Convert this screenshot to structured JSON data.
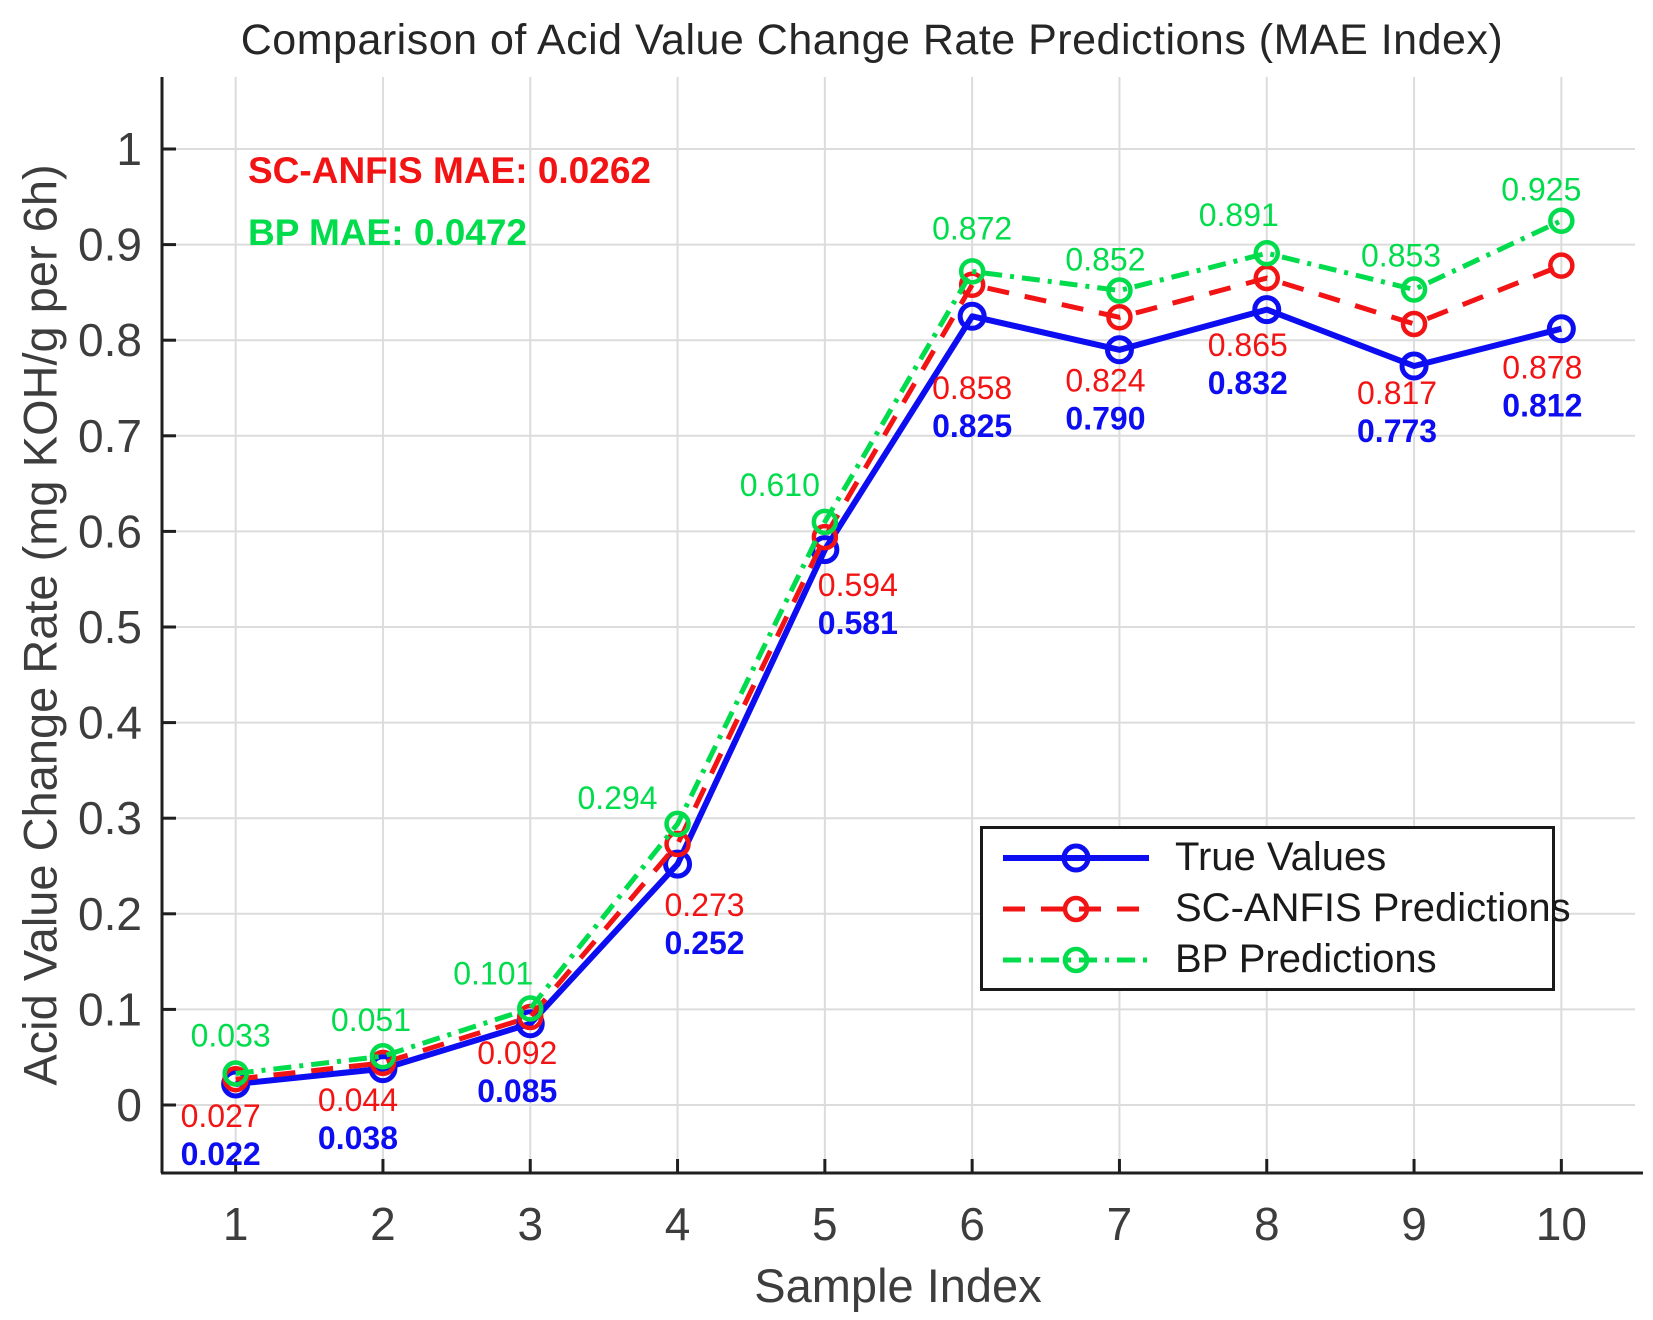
{
  "title": "Comparison of Acid Value Change Rate Predictions (MAE Index)",
  "axes": {
    "x_label": "Sample Index",
    "y_label": "Acid Value Change Rate (mg KOH/g per 6h)",
    "x_tick_labels": [
      "1",
      "2",
      "3",
      "4",
      "5",
      "6",
      "7",
      "8",
      "9",
      "10"
    ],
    "y_tick_labels": [
      "0",
      "0.1",
      "0.2",
      "0.3",
      "0.4",
      "0.5",
      "0.6",
      "0.7",
      "0.8",
      "0.9",
      "1"
    ]
  },
  "annotations": {
    "sc_anfis_mae": {
      "text": "SC-ANFIS MAE: 0.0262",
      "color": "#f21414"
    },
    "bp_mae": {
      "text": "BP MAE: 0.0472",
      "color": "#00dc4b"
    }
  },
  "colors": {
    "true_values": "#0d0df2",
    "sc_anfis": "#f21414",
    "bp": "#00dc4b",
    "grid": "#dcdcdc",
    "axis": "#1f1f1f",
    "tick_text": "#3d3d3d"
  },
  "chart_data": {
    "type": "line",
    "title": "Comparison of Acid Value Change Rate Predictions (MAE Index)",
    "xlabel": "Sample Index",
    "ylabel": "Acid Value Change Rate (mg KOH/g per 6h)",
    "x": [
      1,
      2,
      3,
      4,
      5,
      6,
      7,
      8,
      9,
      10
    ],
    "xlim": [
      0.5,
      10.5
    ],
    "ylim": [
      -0.07,
      1.08
    ],
    "grid": true,
    "legend_position": "lower right",
    "mae": {
      "sc_anfis": 0.0262,
      "bp": 0.0472
    },
    "series": [
      {
        "name": "True Values",
        "color": "#0d0df2",
        "style": "solid",
        "marker": "circle",
        "label_bold": true,
        "values": [
          0.022,
          0.038,
          0.085,
          0.252,
          0.581,
          0.825,
          0.79,
          0.832,
          0.773,
          0.812
        ],
        "point_labels": [
          "0.022",
          "0.038",
          "0.085",
          "0.252",
          "0.581",
          "0.825",
          "0.790",
          "0.832",
          "0.773",
          "0.812"
        ]
      },
      {
        "name": "SC-ANFIS Predictions",
        "color": "#f21414",
        "style": "dashed",
        "marker": "circle",
        "label_bold": false,
        "values": [
          0.027,
          0.044,
          0.092,
          0.273,
          0.594,
          0.858,
          0.824,
          0.865,
          0.817,
          0.878
        ],
        "point_labels": [
          "0.027",
          "0.044",
          "0.092",
          "0.273",
          "0.594",
          "0.858",
          "0.824",
          "0.865",
          "0.817",
          "0.878"
        ]
      },
      {
        "name": "BP Predictions",
        "color": "#00dc4b",
        "style": "dashdot",
        "marker": "circle",
        "label_bold": false,
        "values": [
          0.033,
          0.051,
          0.101,
          0.294,
          0.61,
          0.872,
          0.852,
          0.891,
          0.853,
          0.925
        ],
        "point_labels": [
          "0.033",
          "0.051",
          "0.101",
          "0.294",
          "0.610",
          "0.872",
          "0.852",
          "0.891",
          "0.853",
          "0.925"
        ]
      }
    ]
  }
}
